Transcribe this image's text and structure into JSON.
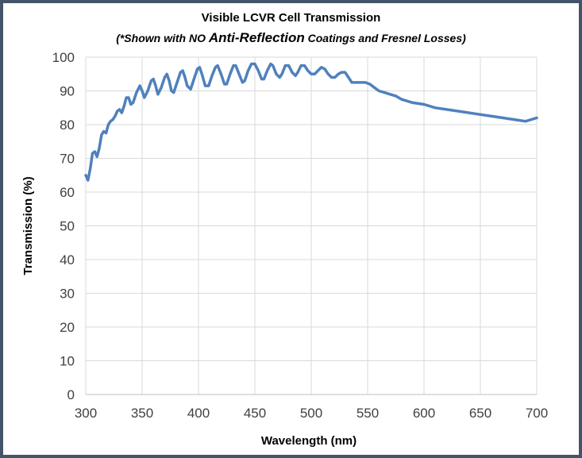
{
  "chart_data": {
    "type": "line",
    "title": "Visible LCVR Cell Transmission",
    "subtitle_parts": [
      "(*Shown with NO ",
      "Anti-Reflection",
      " Coatings and Fresnel Losses)"
    ],
    "xlabel": "Wavelength (nm)",
    "ylabel": "Transmission (%)",
    "xlim": [
      300,
      700
    ],
    "ylim": [
      0,
      100
    ],
    "xticks": [
      300,
      350,
      400,
      450,
      500,
      550,
      600,
      650,
      700
    ],
    "yticks": [
      0,
      10,
      20,
      30,
      40,
      50,
      60,
      70,
      80,
      90,
      100
    ],
    "grid": true,
    "line_color": "#4f81bd",
    "series": [
      {
        "points": [
          [
            300,
            65
          ],
          [
            302,
            63.5
          ],
          [
            304,
            67
          ],
          [
            306,
            71.5
          ],
          [
            308,
            72
          ],
          [
            310,
            70.5
          ],
          [
            312,
            73
          ],
          [
            314,
            77
          ],
          [
            316,
            78
          ],
          [
            318,
            77.5
          ],
          [
            320,
            80
          ],
          [
            322,
            81
          ],
          [
            324,
            81.5
          ],
          [
            326,
            82.5
          ],
          [
            328,
            84
          ],
          [
            330,
            84.5
          ],
          [
            332,
            83.5
          ],
          [
            334,
            85.5
          ],
          [
            336,
            88
          ],
          [
            338,
            88
          ],
          [
            340,
            86
          ],
          [
            342,
            86.5
          ],
          [
            345,
            89.5
          ],
          [
            348,
            91.5
          ],
          [
            350,
            90
          ],
          [
            352,
            88
          ],
          [
            355,
            90
          ],
          [
            358,
            93
          ],
          [
            360,
            93.5
          ],
          [
            362,
            91.5
          ],
          [
            364,
            89
          ],
          [
            367,
            91
          ],
          [
            370,
            94
          ],
          [
            372,
            95
          ],
          [
            374,
            93
          ],
          [
            376,
            90
          ],
          [
            378,
            89.5
          ],
          [
            381,
            92.5
          ],
          [
            384,
            95.5
          ],
          [
            386,
            96
          ],
          [
            388,
            94
          ],
          [
            390,
            91.5
          ],
          [
            393,
            90.5
          ],
          [
            396,
            93.5
          ],
          [
            399,
            96.5
          ],
          [
            401,
            97
          ],
          [
            403,
            95
          ],
          [
            406,
            91.5
          ],
          [
            409,
            91.5
          ],
          [
            412,
            94.5
          ],
          [
            415,
            97
          ],
          [
            417,
            97.5
          ],
          [
            420,
            95
          ],
          [
            423,
            92
          ],
          [
            425,
            92
          ],
          [
            428,
            95
          ],
          [
            431,
            97.5
          ],
          [
            433,
            97.5
          ],
          [
            436,
            95
          ],
          [
            439,
            92.5
          ],
          [
            441,
            93
          ],
          [
            444,
            96
          ],
          [
            447,
            98
          ],
          [
            450,
            98
          ],
          [
            453,
            96
          ],
          [
            456,
            93.5
          ],
          [
            458,
            93.5
          ],
          [
            461,
            96
          ],
          [
            464,
            98
          ],
          [
            466,
            97.5
          ],
          [
            469,
            95
          ],
          [
            472,
            94
          ],
          [
            474,
            95
          ],
          [
            477,
            97.5
          ],
          [
            480,
            97.5
          ],
          [
            483,
            95.5
          ],
          [
            486,
            94.5
          ],
          [
            488,
            95.5
          ],
          [
            491,
            97.5
          ],
          [
            494,
            97.5
          ],
          [
            497,
            96
          ],
          [
            500,
            95
          ],
          [
            503,
            95
          ],
          [
            506,
            96
          ],
          [
            509,
            97
          ],
          [
            512,
            96.5
          ],
          [
            515,
            95
          ],
          [
            518,
            94
          ],
          [
            521,
            94
          ],
          [
            524,
            95
          ],
          [
            527,
            95.5
          ],
          [
            530,
            95.5
          ],
          [
            533,
            94
          ],
          [
            536,
            92.5
          ],
          [
            540,
            92.5
          ],
          [
            544,
            92.5
          ],
          [
            548,
            92.5
          ],
          [
            552,
            92
          ],
          [
            556,
            91
          ],
          [
            560,
            90
          ],
          [
            565,
            89.5
          ],
          [
            570,
            89
          ],
          [
            575,
            88.5
          ],
          [
            580,
            87.5
          ],
          [
            590,
            86.5
          ],
          [
            600,
            86
          ],
          [
            610,
            85
          ],
          [
            620,
            84.5
          ],
          [
            630,
            84
          ],
          [
            640,
            83.5
          ],
          [
            650,
            83
          ],
          [
            660,
            82.5
          ],
          [
            670,
            82
          ],
          [
            680,
            81.5
          ],
          [
            690,
            81
          ],
          [
            700,
            82
          ]
        ]
      }
    ]
  }
}
